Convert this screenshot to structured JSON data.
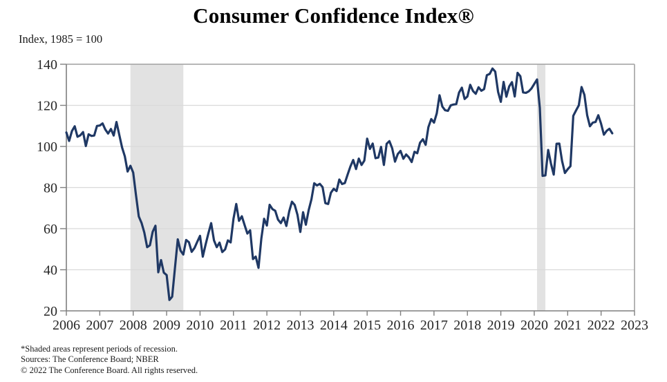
{
  "title": "Consumer Confidence Index®",
  "subtitle": "Index, 1985 = 100",
  "footnotes": [
    "*Shaded areas represent periods of recession.",
    "Sources: The Conference Board; NBER",
    "© 2022 The Conference Board. All rights reserved."
  ],
  "chart_data": {
    "type": "line",
    "title": "Consumer Confidence Index®",
    "ylabel": "Index, 1985 = 100",
    "xlabel": "",
    "ylim": [
      20,
      140
    ],
    "yticks": [
      20,
      40,
      60,
      80,
      100,
      120,
      140
    ],
    "xticks": [
      2006,
      2007,
      2008,
      2009,
      2010,
      2011,
      2012,
      2013,
      2014,
      2015,
      2016,
      2017,
      2018,
      2019,
      2020,
      2021,
      2022,
      2023
    ],
    "x_monthly_from": "2006-01",
    "x_monthly_to": "2022-05",
    "grid": "horizontal-only",
    "legend": "none",
    "line_color": "#1F3864",
    "recession_color": "#E2E2E2",
    "axis_color": "#7F7F7F",
    "gridline_color": "#D9D9D9",
    "frame_color": "#ABABAB",
    "recessions": [
      {
        "label": "2008-09 recession",
        "from": 2007.917,
        "to": 2009.5
      },
      {
        "label": "COVID-19 recession",
        "from": 2020.083,
        "to": 2020.333
      }
    ],
    "series": [
      {
        "name": "Consumer Confidence Index",
        "monthly_values": [
          106.8,
          102.7,
          107.5,
          109.8,
          104.7,
          105.4,
          107.0,
          100.2,
          105.9,
          105.1,
          105.3,
          110.0,
          110.2,
          111.2,
          108.2,
          106.3,
          108.5,
          105.3,
          111.9,
          105.6,
          99.5,
          95.2,
          87.8,
          90.6,
          87.3,
          76.4,
          65.9,
          62.8,
          58.1,
          51.0,
          51.9,
          58.5,
          61.4,
          38.8,
          44.7,
          38.6,
          37.4,
          25.3,
          26.9,
          40.8,
          54.8,
          49.3,
          47.4,
          54.5,
          53.4,
          48.7,
          50.6,
          53.6,
          56.5,
          46.4,
          52.3,
          57.7,
          62.7,
          54.3,
          51.0,
          53.2,
          48.6,
          49.9,
          54.3,
          53.3,
          64.8,
          72.0,
          63.8,
          66.0,
          61.7,
          57.6,
          59.2,
          45.2,
          46.4,
          40.9,
          55.2,
          64.8,
          61.5,
          71.6,
          69.5,
          68.7,
          64.4,
          62.7,
          65.4,
          61.3,
          68.4,
          73.1,
          71.5,
          66.7,
          58.4,
          68.0,
          61.9,
          69.0,
          74.3,
          82.1,
          81.0,
          81.8,
          80.2,
          72.4,
          72.0,
          77.5,
          79.4,
          78.3,
          83.9,
          81.7,
          82.2,
          86.4,
          90.3,
          93.4,
          89.0,
          94.1,
          91.0,
          93.1,
          103.8,
          98.8,
          101.4,
          94.3,
          94.6,
          99.8,
          91.0,
          101.3,
          102.6,
          99.1,
          92.6,
          96.3,
          97.8,
          94.0,
          96.1,
          94.7,
          92.4,
          97.4,
          96.7,
          101.8,
          103.5,
          100.8,
          109.4,
          113.3,
          111.6,
          116.1,
          124.9,
          119.4,
          117.6,
          117.3,
          120.0,
          120.4,
          120.6,
          126.2,
          128.6,
          123.1,
          124.3,
          130.0,
          127.0,
          125.6,
          128.8,
          127.1,
          127.9,
          134.7,
          135.3,
          137.9,
          136.4,
          126.6,
          121.7,
          131.4,
          124.2,
          129.2,
          131.3,
          124.3,
          135.8,
          134.2,
          126.3,
          126.1,
          126.8,
          128.2,
          130.4,
          132.6,
          118.8,
          85.7,
          85.9,
          98.3,
          91.7,
          86.3,
          101.3,
          101.4,
          92.9,
          87.1,
          88.9,
          90.4,
          114.9,
          117.5,
          120.0,
          128.9,
          125.1,
          115.2,
          109.8,
          111.6,
          111.9,
          115.2,
          111.1,
          105.7,
          107.6,
          108.6,
          106.4
        ]
      }
    ]
  }
}
